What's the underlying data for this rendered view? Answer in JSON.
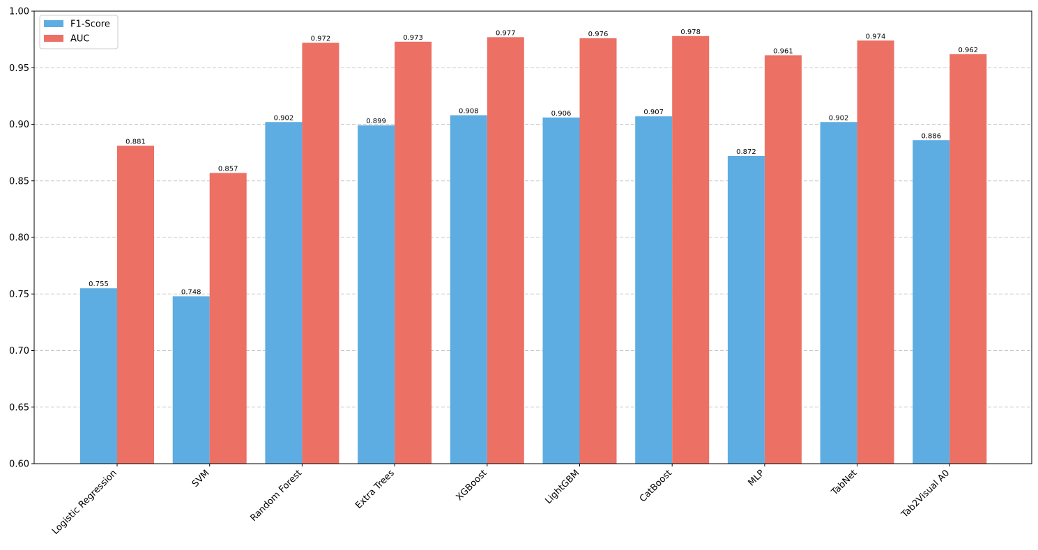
{
  "chart_data": {
    "type": "bar",
    "title": "",
    "xlabel": "",
    "ylabel": "",
    "ylim": [
      0.6,
      1.0
    ],
    "yticks": [
      "0.60",
      "0.65",
      "0.70",
      "0.75",
      "0.80",
      "0.85",
      "0.90",
      "0.95",
      "1.00"
    ],
    "grid": "y-dashed",
    "legend_position": "top-left",
    "categories": [
      "Logistic Regression",
      "SVM",
      "Random Forest",
      "Extra Trees",
      "XGBoost",
      "LightGBM",
      "CatBoost",
      "MLP",
      "TabNet",
      "Tab2Visual A0"
    ],
    "series": [
      {
        "name": "F1-Score",
        "color": "#5DADE2",
        "values": [
          0.755,
          0.748,
          0.902,
          0.899,
          0.908,
          0.906,
          0.907,
          0.872,
          0.902,
          0.886
        ],
        "labels": [
          "0.755",
          "0.748",
          "0.902",
          "0.899",
          "0.908",
          "0.906",
          "0.907",
          "0.872",
          "0.902",
          "0.886"
        ]
      },
      {
        "name": "AUC",
        "color": "#EC7063",
        "values": [
          0.881,
          0.857,
          0.972,
          0.973,
          0.977,
          0.976,
          0.978,
          0.961,
          0.974,
          0.962
        ],
        "labels": [
          "0.881",
          "0.857",
          "0.972",
          "0.973",
          "0.977",
          "0.976",
          "0.978",
          "0.961",
          "0.974",
          "0.962"
        ]
      }
    ]
  }
}
